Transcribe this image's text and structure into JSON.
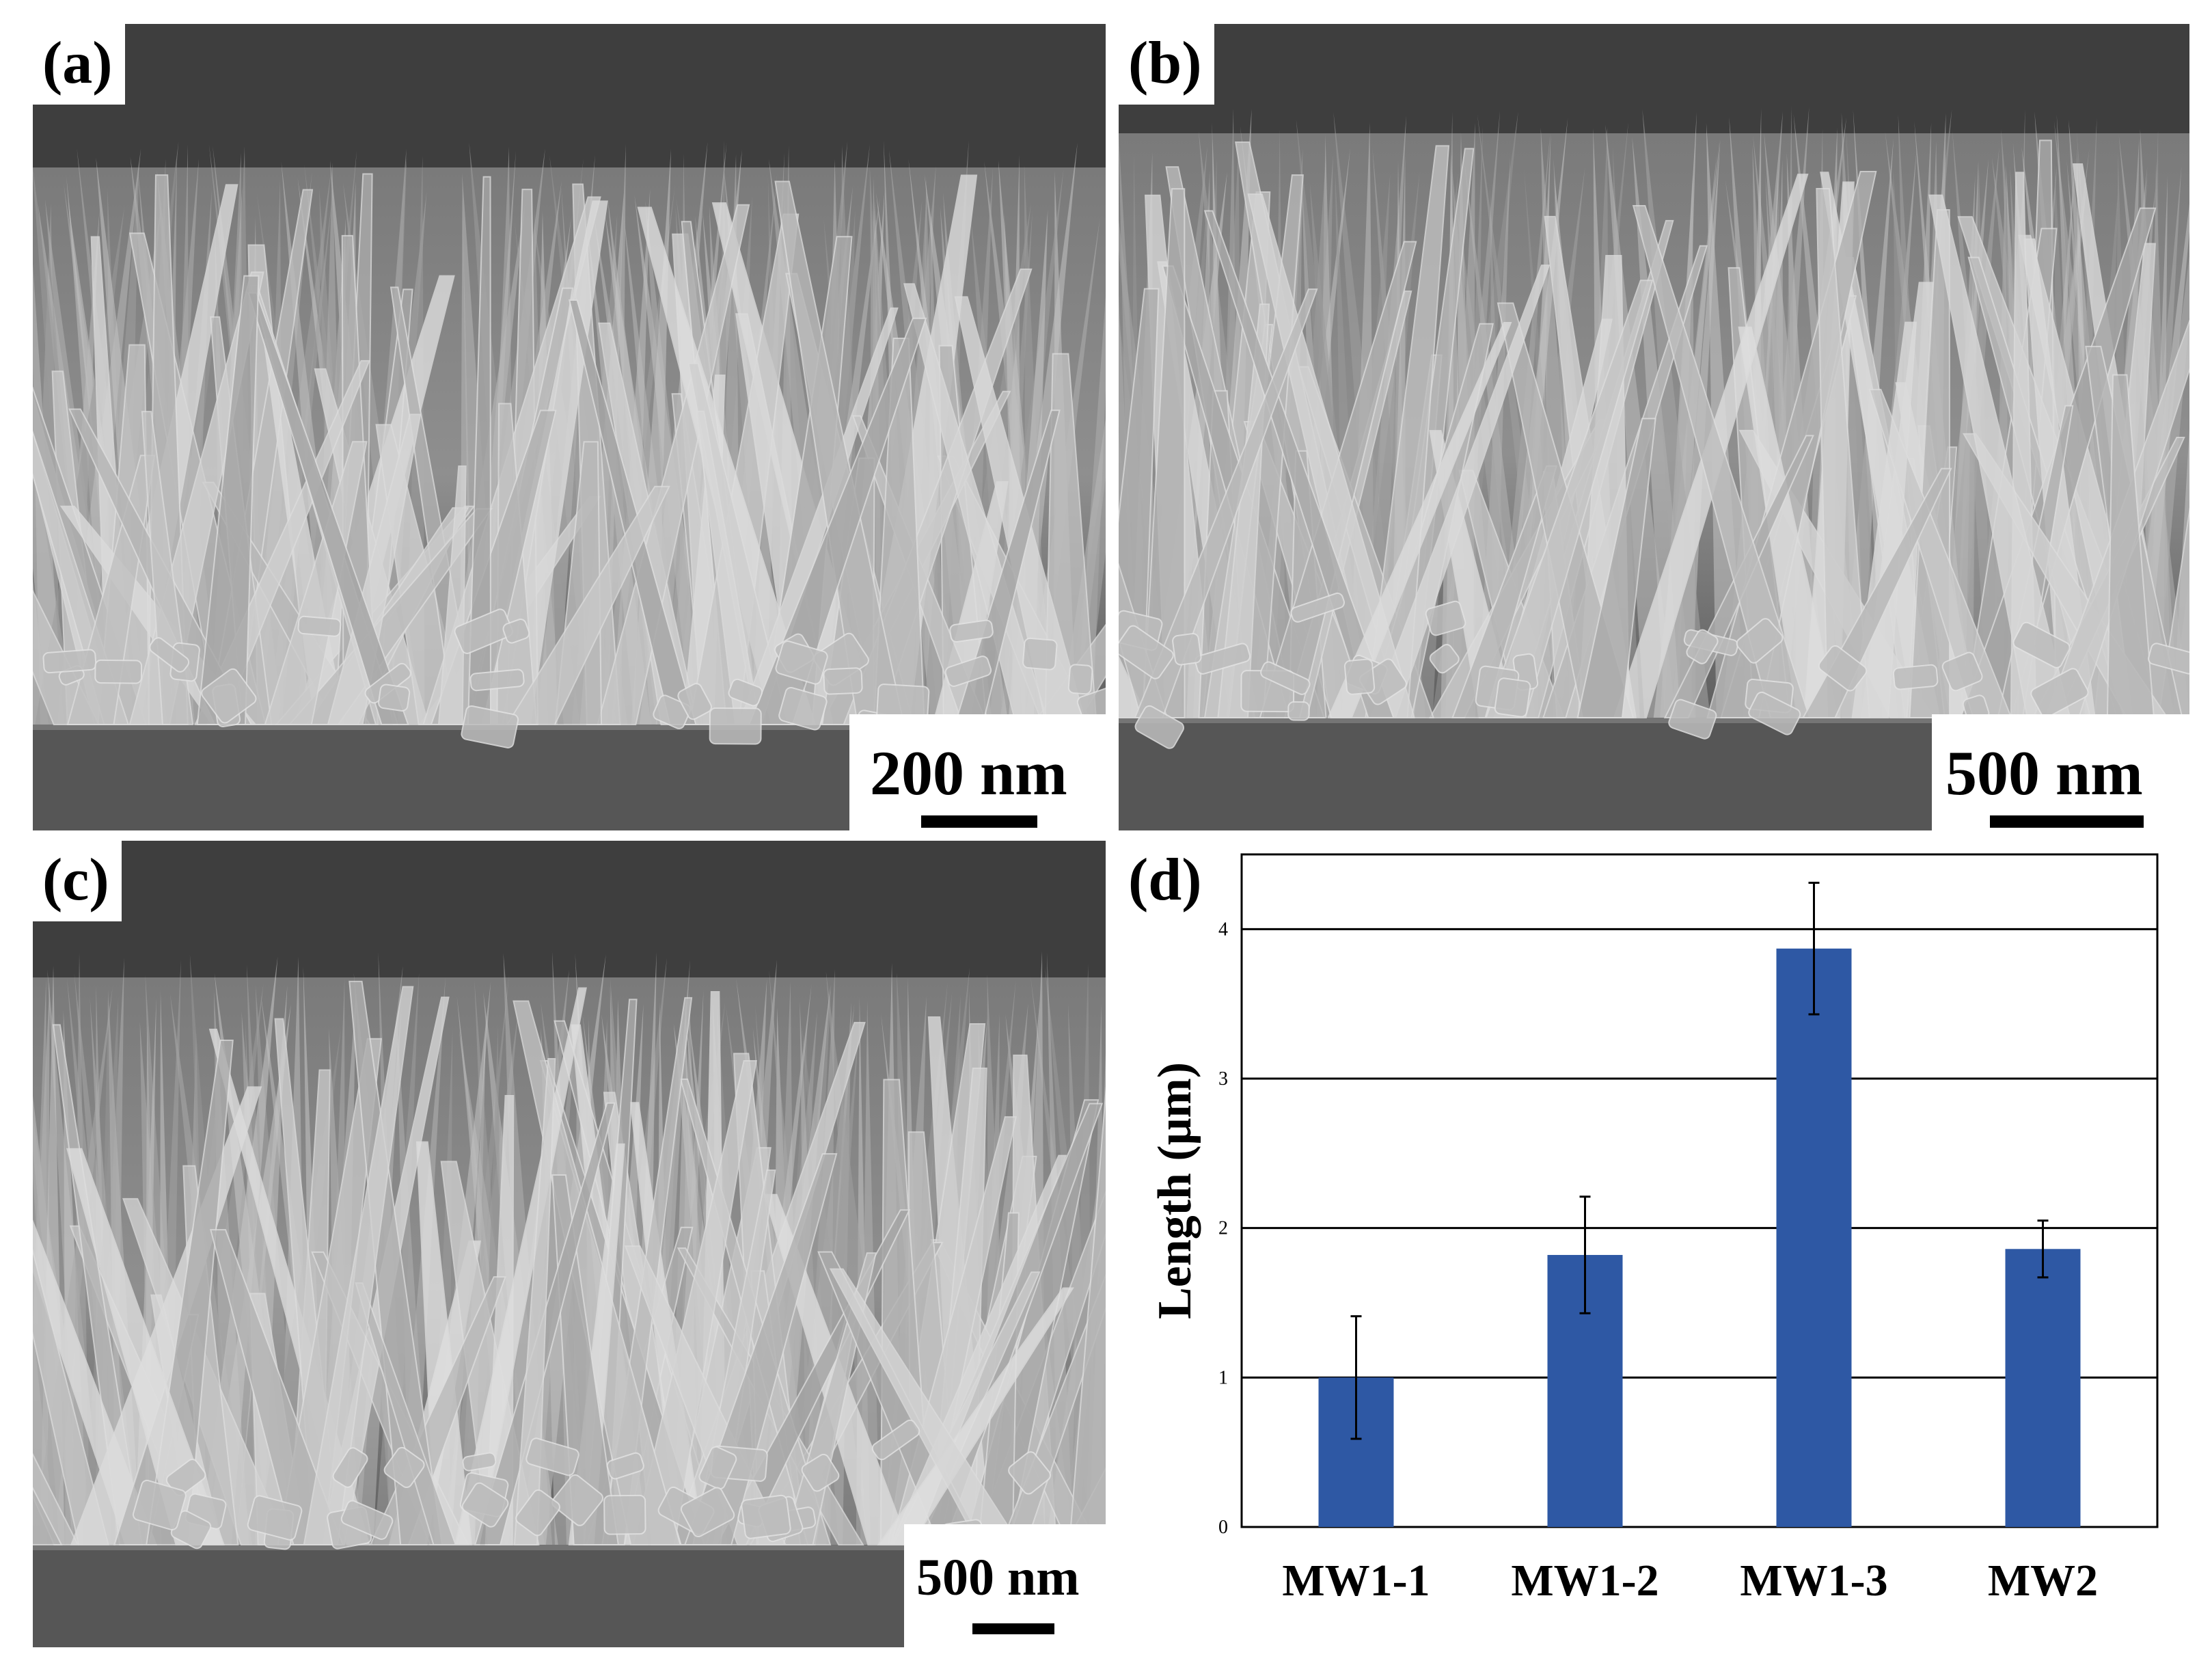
{
  "panels": [
    {
      "label": "(a)",
      "scale_text": "200 nm"
    },
    {
      "label": "(b)",
      "scale_text": "500 nm"
    },
    {
      "label": "(c)",
      "scale_text": "500 nm"
    },
    {
      "label": "(d)"
    }
  ],
  "chart_data": {
    "type": "bar",
    "categories": [
      "MW1-1",
      "MW1-2",
      "MW1-3",
      "MW2"
    ],
    "series": [
      {
        "values": [
          1.0,
          1.82,
          3.87,
          1.86
        ],
        "errors": [
          0.41,
          0.39,
          0.44,
          0.19
        ],
        "color": "#2e58a4"
      }
    ],
    "ylabel": "Length (μm)",
    "ylim": [
      0,
      4.5
    ],
    "yticks": [
      0,
      1,
      2,
      3,
      4
    ],
    "grid": true,
    "legend": "none"
  }
}
